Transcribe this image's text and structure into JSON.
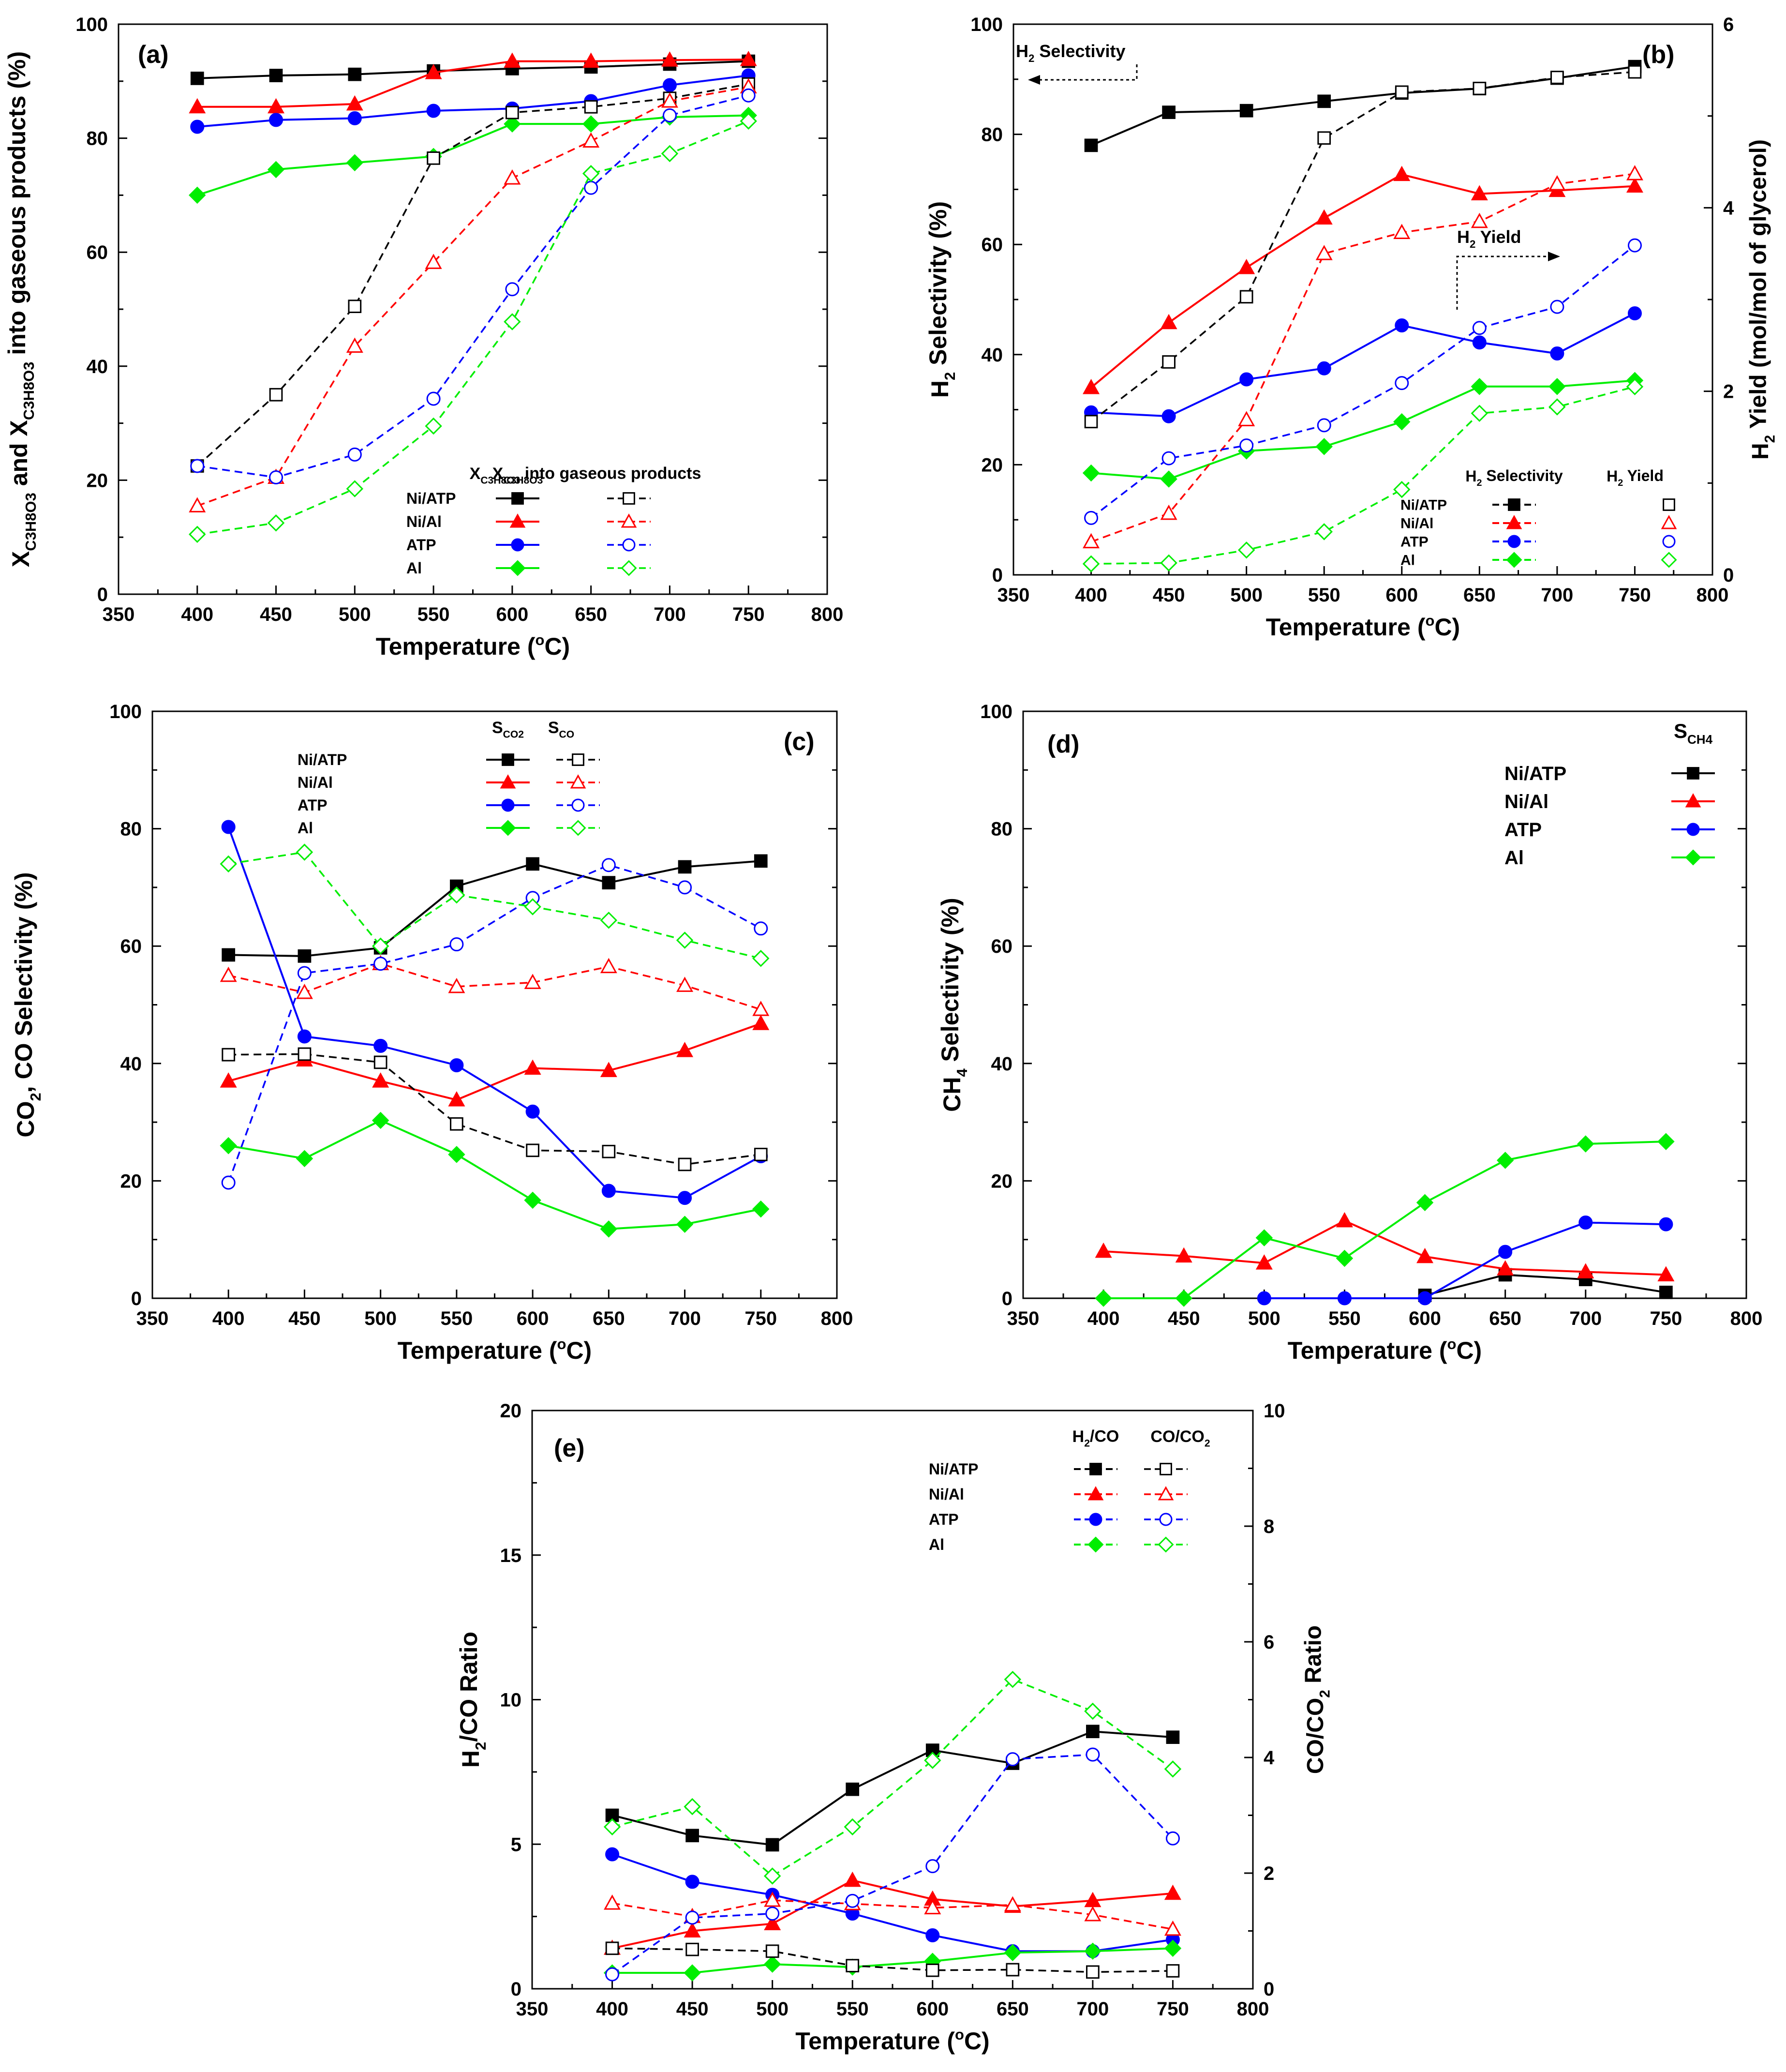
{
  "colors": {
    "Ni/ATP": "#000000",
    "Ni/Al": "#ff0000",
    "ATP": "#0000ff",
    "Al": "#00ee00"
  },
  "chart_data": [
    {
      "id": "a",
      "panel_label": "(a)",
      "type": "line",
      "xlabel": "Temperature (°C)",
      "ylabel": "X_C3H8O3 and X_C3H8O3 into gaseous products (%)",
      "xlim": [
        350,
        800
      ],
      "ylim": [
        0,
        100
      ],
      "xticks": [
        350,
        400,
        450,
        500,
        550,
        600,
        650,
        700,
        750,
        800
      ],
      "yticks": [
        0,
        20,
        40,
        60,
        80,
        100
      ],
      "legend": {
        "col1": "X_C3H8O3",
        "col2": "X_C3H8O3 into gaseous products"
      },
      "x": [
        400,
        450,
        500,
        550,
        600,
        650,
        700,
        750
      ],
      "series": [
        {
          "name": "Ni/ATP",
          "group": "filled",
          "values": [
            90.5,
            91,
            91.2,
            91.8,
            92.2,
            92.5,
            93,
            93.5
          ]
        },
        {
          "name": "Ni/Al",
          "group": "filled",
          "values": [
            85.5,
            85.5,
            86,
            91.5,
            93.5,
            93.5,
            93.7,
            93.8
          ]
        },
        {
          "name": "ATP",
          "group": "filled",
          "values": [
            82,
            83.2,
            83.5,
            84.8,
            85.2,
            86.5,
            89.3,
            91
          ]
        },
        {
          "name": "Al",
          "group": "filled",
          "values": [
            70,
            74.5,
            75.7,
            76.8,
            82.5,
            82.5,
            83.7,
            84
          ]
        },
        {
          "name": "Ni/ATP",
          "group": "open",
          "values": [
            22.5,
            35,
            50.5,
            76.5,
            84.5,
            85.5,
            87,
            89.5
          ]
        },
        {
          "name": "Ni/Al",
          "group": "open",
          "values": [
            15.5,
            20.5,
            43.5,
            58.2,
            73,
            79.5,
            86.5,
            89
          ]
        },
        {
          "name": "ATP",
          "group": "open",
          "values": [
            22.5,
            20.5,
            24.5,
            34.3,
            53.5,
            71.3,
            84,
            87.5
          ]
        },
        {
          "name": "Al",
          "group": "open",
          "values": [
            10.5,
            12.5,
            18.5,
            29.5,
            47.8,
            73.8,
            77.3,
            83
          ]
        }
      ]
    },
    {
      "id": "b",
      "panel_label": "(b)",
      "type": "line",
      "xlabel": "Temperature (°C)",
      "ylabel": "H2 Selectivity (%)",
      "y2label": "H2 Yield (mol/mol of glycerol)",
      "xlim": [
        350,
        800
      ],
      "ylim": [
        0,
        100
      ],
      "y2lim": [
        0,
        6
      ],
      "xticks": [
        350,
        400,
        450,
        500,
        550,
        600,
        650,
        700,
        750,
        800
      ],
      "yticks": [
        0,
        20,
        40,
        60,
        80,
        100
      ],
      "y2ticks": [
        0,
        2,
        4,
        6
      ],
      "legend": {
        "col1": "H2 Selectivity",
        "col2": "H2 Yield"
      },
      "annotations": [
        "H2 Selectivity",
        "H2 Yield"
      ],
      "x": [
        400,
        450,
        500,
        550,
        600,
        650,
        700,
        750
      ],
      "series": [
        {
          "name": "Ni/ATP",
          "group": "filled",
          "axis": "left",
          "values": [
            78,
            84,
            84.3,
            86,
            87.5,
            88.3,
            90.2,
            92.3
          ]
        },
        {
          "name": "Ni/Al",
          "group": "filled",
          "axis": "left",
          "values": [
            34,
            45.8,
            55.8,
            64.8,
            72.7,
            69.2,
            69.8,
            70.6
          ]
        },
        {
          "name": "ATP",
          "group": "filled",
          "axis": "left",
          "values": [
            29.5,
            28.8,
            35.5,
            37.5,
            45.3,
            42.2,
            40.2,
            47.5
          ]
        },
        {
          "name": "Al",
          "group": "filled",
          "axis": "left",
          "values": [
            18.5,
            17.4,
            22.5,
            23.3,
            27.8,
            34.2,
            34.2,
            35.3
          ]
        },
        {
          "name": "Ni/ATP",
          "group": "open",
          "axis": "right",
          "values": [
            1.67,
            2.32,
            3.03,
            4.76,
            5.26,
            5.3,
            5.42,
            5.48
          ]
        },
        {
          "name": "Ni/Al",
          "group": "open",
          "axis": "right",
          "values": [
            0.36,
            0.67,
            1.69,
            3.5,
            3.73,
            3.85,
            4.26,
            4.37
          ]
        },
        {
          "name": "ATP",
          "group": "open",
          "axis": "right",
          "values": [
            0.62,
            1.27,
            1.41,
            1.63,
            2.09,
            2.69,
            2.92,
            3.59
          ]
        },
        {
          "name": "Al",
          "group": "open",
          "axis": "right",
          "values": [
            0.12,
            0.13,
            0.27,
            0.47,
            0.93,
            1.76,
            1.83,
            2.05
          ]
        }
      ]
    },
    {
      "id": "c",
      "panel_label": "(c)",
      "type": "line",
      "xlabel": "Temperature (°C)",
      "ylabel": "CO2, CO Selectivity (%)",
      "xlim": [
        350,
        800
      ],
      "ylim": [
        0,
        100
      ],
      "xticks": [
        350,
        400,
        450,
        500,
        550,
        600,
        650,
        700,
        750,
        800
      ],
      "yticks": [
        0,
        20,
        40,
        60,
        80,
        100
      ],
      "legend": {
        "col1": "S_CO2",
        "col2": "S_CO"
      },
      "x": [
        400,
        450,
        500,
        550,
        600,
        650,
        700,
        750
      ],
      "series": [
        {
          "name": "Ni/ATP",
          "group": "filled",
          "values": [
            58.5,
            58.3,
            59.7,
            70.2,
            74,
            70.8,
            73.5,
            74.5
          ]
        },
        {
          "name": "Ni/Al",
          "group": "filled",
          "values": [
            37,
            40.6,
            37,
            33.8,
            39.2,
            38.8,
            42.2,
            46.8
          ]
        },
        {
          "name": "ATP",
          "group": "filled",
          "values": [
            80.3,
            44.6,
            43,
            39.7,
            31.8,
            18.3,
            17.1,
            24.2
          ]
        },
        {
          "name": "Al",
          "group": "filled",
          "values": [
            26,
            23.8,
            30.3,
            24.5,
            16.7,
            11.8,
            12.6,
            15.2
          ]
        },
        {
          "name": "Ni/ATP",
          "group": "open",
          "values": [
            41.5,
            41.6,
            40.2,
            29.7,
            25.2,
            25,
            22.8,
            24.5
          ]
        },
        {
          "name": "Ni/Al",
          "group": "open",
          "values": [
            55,
            52.1,
            57,
            53.1,
            53.8,
            56.5,
            53.3,
            49.2
          ]
        },
        {
          "name": "ATP",
          "group": "open",
          "values": [
            19.7,
            55.4,
            57,
            60.3,
            68.2,
            73.8,
            70,
            63
          ]
        },
        {
          "name": "Al",
          "group": "open",
          "values": [
            74,
            76,
            60,
            68.7,
            66.7,
            64.4,
            61,
            57.9
          ]
        }
      ]
    },
    {
      "id": "d",
      "panel_label": "(d)",
      "type": "line",
      "xlabel": "Temperature (°C)",
      "ylabel": "CH4 Selectivity (%)",
      "xlim": [
        350,
        800
      ],
      "ylim": [
        0,
        100
      ],
      "xticks": [
        350,
        400,
        450,
        500,
        550,
        600,
        650,
        700,
        750,
        800
      ],
      "yticks": [
        0,
        20,
        40,
        60,
        80,
        100
      ],
      "legend": {
        "col1": "S_CH4"
      },
      "x": [
        400,
        450,
        500,
        550,
        600,
        650,
        700,
        750
      ],
      "series": [
        {
          "name": "Ni/ATP",
          "group": "filled",
          "values": [
            null,
            null,
            null,
            null,
            0.5,
            4,
            3.2,
            1
          ]
        },
        {
          "name": "Ni/Al",
          "group": "filled",
          "values": [
            8,
            7.2,
            6,
            13.2,
            7.1,
            5,
            4.5,
            4
          ]
        },
        {
          "name": "ATP",
          "group": "filled",
          "values": [
            null,
            null,
            0,
            0,
            0,
            7.9,
            12.9,
            12.6
          ]
        },
        {
          "name": "Al",
          "group": "filled",
          "values": [
            0,
            0,
            10.3,
            6.8,
            16.3,
            23.5,
            26.3,
            26.7
          ]
        }
      ]
    },
    {
      "id": "e",
      "panel_label": "(e)",
      "type": "line",
      "xlabel": "Temperature (°C)",
      "ylabel": "H2/CO Ratio",
      "y2label": "CO/CO2 Ratio",
      "xlim": [
        350,
        800
      ],
      "ylim": [
        0,
        20
      ],
      "y2lim": [
        0,
        10
      ],
      "xticks": [
        350,
        400,
        450,
        500,
        550,
        600,
        650,
        700,
        750,
        800
      ],
      "yticks": [
        0,
        5,
        10,
        15,
        20
      ],
      "y2ticks": [
        0,
        2,
        4,
        6,
        8,
        10
      ],
      "legend": {
        "col1": "H2/CO",
        "col2": "CO/CO2"
      },
      "x": [
        400,
        450,
        500,
        550,
        600,
        650,
        700,
        750
      ],
      "series": [
        {
          "name": "Ni/ATP",
          "group": "filled",
          "axis": "left",
          "values": [
            6,
            5.3,
            4.98,
            6.9,
            8.25,
            7.8,
            8.9,
            8.7
          ]
        },
        {
          "name": "Ni/Al",
          "group": "filled",
          "axis": "left",
          "values": [
            1.4,
            2,
            2.25,
            3.75,
            3.1,
            2.85,
            3.05,
            3.3
          ]
        },
        {
          "name": "ATP",
          "group": "filled",
          "axis": "left",
          "values": [
            4.65,
            3.7,
            3.25,
            2.6,
            1.85,
            1.3,
            1.3,
            1.7
          ]
        },
        {
          "name": "Al",
          "group": "filled",
          "axis": "left",
          "values": [
            0.55,
            0.55,
            0.85,
            0.75,
            0.95,
            1.25,
            1.3,
            1.4
          ]
        },
        {
          "name": "Ni/ATP",
          "group": "open",
          "axis": "right",
          "values": [
            0.7,
            0.68,
            0.65,
            0.4,
            0.32,
            0.33,
            0.29,
            0.31
          ]
        },
        {
          "name": "Ni/Al",
          "group": "open",
          "axis": "right",
          "values": [
            1.48,
            1.25,
            1.53,
            1.47,
            1.4,
            1.45,
            1.28,
            1.03
          ]
        },
        {
          "name": "ATP",
          "group": "open",
          "axis": "right",
          "values": [
            0.25,
            1.23,
            1.3,
            1.52,
            2.12,
            3.97,
            4.05,
            2.6
          ]
        },
        {
          "name": "Al",
          "group": "open",
          "axis": "right",
          "values": [
            2.8,
            3.15,
            1.95,
            2.8,
            3.95,
            5.35,
            4.8,
            3.8
          ]
        }
      ]
    }
  ]
}
